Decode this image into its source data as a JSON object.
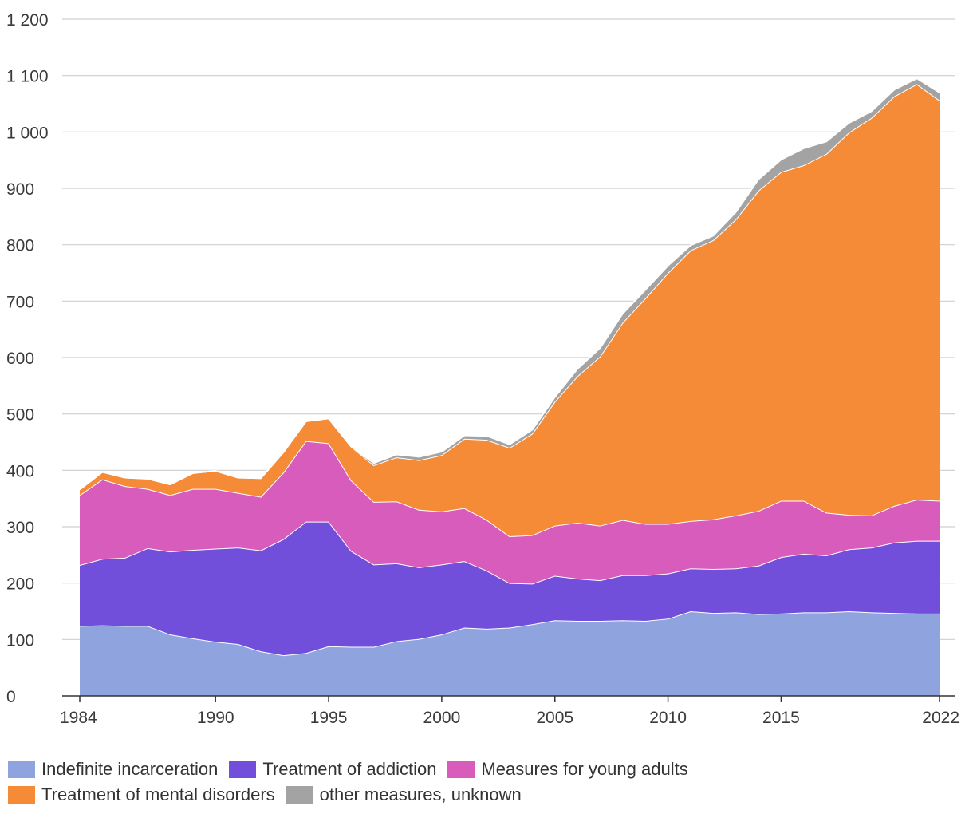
{
  "chart_data": {
    "type": "area",
    "stacked": true,
    "title": "",
    "xlabel": "",
    "ylabel": "",
    "ylim": [
      0,
      1200
    ],
    "y_ticks": [
      0,
      100,
      200,
      300,
      400,
      500,
      600,
      700,
      800,
      900,
      1000,
      1100,
      1200
    ],
    "y_tick_labels": [
      "0",
      "100",
      "200",
      "300",
      "400",
      "500",
      "600",
      "700",
      "800",
      "900",
      "1 000",
      "1 100",
      "1 200"
    ],
    "x_tick_labels": [
      "1984",
      "1990",
      "1995",
      "2000",
      "2005",
      "2010",
      "2015",
      "2022"
    ],
    "x_tick_years": [
      1984,
      1990,
      1995,
      2000,
      2005,
      2010,
      2015,
      2022
    ],
    "grid": "horizontal",
    "legend_position": "bottom-left",
    "x": [
      1984,
      1985,
      1986,
      1987,
      1988,
      1989,
      1990,
      1991,
      1992,
      1993,
      1994,
      1995,
      1996,
      1997,
      1998,
      1999,
      2000,
      2001,
      2002,
      2003,
      2004,
      2005,
      2006,
      2007,
      2008,
      2009,
      2010,
      2011,
      2012,
      2013,
      2014,
      2015,
      2016,
      2017,
      2018,
      2019,
      2020,
      2021,
      2022
    ],
    "series": [
      {
        "name": "Indefinite incarceration",
        "color": "#8fa3de",
        "values": [
          124,
          125,
          124,
          124,
          109,
          102,
          96,
          92,
          79,
          72,
          76,
          88,
          87,
          87,
          97,
          101,
          109,
          121,
          119,
          121,
          127,
          134,
          133,
          133,
          134,
          133,
          137,
          150,
          147,
          148,
          145,
          146,
          148,
          148,
          150,
          148,
          147,
          146,
          146
        ]
      },
      {
        "name": "Treatment of addiction",
        "color": "#714fda",
        "values": [
          108,
          118,
          121,
          138,
          147,
          157,
          165,
          171,
          179,
          206,
          233,
          221,
          170,
          146,
          138,
          127,
          124,
          118,
          103,
          79,
          72,
          79,
          75,
          72,
          80,
          81,
          80,
          76,
          78,
          78,
          86,
          100,
          104,
          101,
          110,
          115,
          125,
          129,
          129
        ]
      },
      {
        "name": "Measures for young adults",
        "color": "#d75cbc",
        "values": [
          124,
          141,
          127,
          105,
          100,
          108,
          106,
          97,
          95,
          118,
          143,
          139,
          125,
          111,
          110,
          102,
          94,
          94,
          90,
          83,
          86,
          89,
          99,
          97,
          98,
          91,
          88,
          84,
          88,
          94,
          97,
          100,
          94,
          76,
          61,
          57,
          65,
          73,
          71
        ]
      },
      {
        "name": "Treatment of mental disorders",
        "color": "#f68b37",
        "values": [
          10,
          13,
          15,
          18,
          19,
          28,
          32,
          27,
          33,
          36,
          35,
          44,
          60,
          65,
          78,
          88,
          100,
          123,
          142,
          157,
          180,
          220,
          260,
          300,
          350,
          400,
          445,
          480,
          495,
          525,
          568,
          583,
          595,
          636,
          678,
          705,
          726,
          737,
          710
        ]
      },
      {
        "name": "other measures, unknown",
        "color": "#a3a3a3",
        "values": [
          0,
          0,
          0,
          0,
          0,
          0,
          0,
          0,
          0,
          0,
          0,
          0,
          0,
          4,
          5,
          6,
          6,
          6,
          7,
          6,
          7,
          8,
          13,
          15,
          16,
          15,
          13,
          9,
          8,
          13,
          20,
          22,
          30,
          22,
          17,
          12,
          12,
          10,
          14
        ]
      }
    ]
  }
}
